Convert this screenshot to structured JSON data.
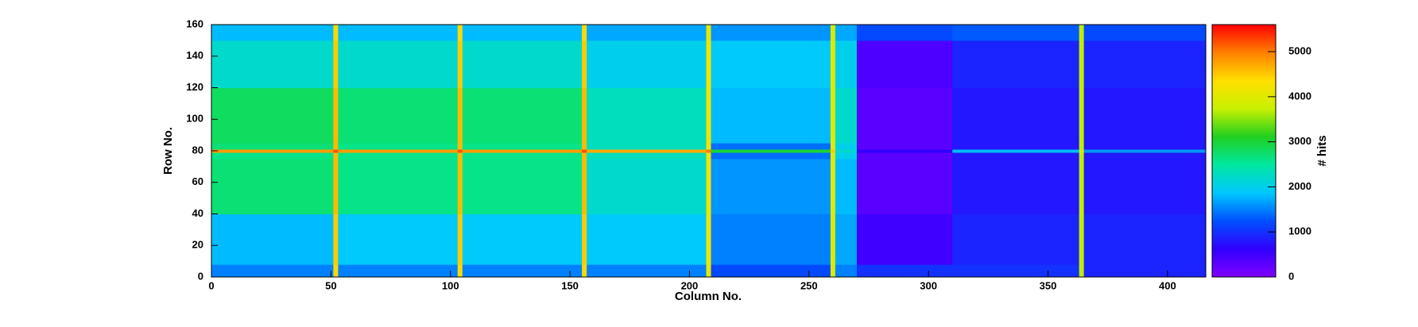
{
  "chart_data": {
    "type": "heatmap",
    "x_label": "Column No.",
    "y_label": "Row No.",
    "z_label": "# hits",
    "xbins": [
      0,
      51,
      53,
      103,
      105,
      155,
      157,
      207,
      209,
      259,
      261,
      270,
      310,
      363,
      365,
      416
    ],
    "ybins": [
      0,
      8,
      40,
      75,
      79,
      81,
      85,
      120,
      150,
      160
    ],
    "z": [
      [
        1500,
        4400,
        1500,
        4400,
        1500,
        4400,
        1500,
        4100,
        1200,
        3900,
        1500,
        1000,
        1000,
        3700,
        900
      ],
      [
        1800,
        4500,
        1900,
        4500,
        1900,
        4500,
        1900,
        4200,
        1500,
        4000,
        1700,
        500,
        900,
        3700,
        900
      ],
      [
        2700,
        4600,
        2600,
        4600,
        2600,
        4600,
        2200,
        4200,
        1600,
        4000,
        1800,
        300,
        800,
        3700,
        800
      ],
      [
        2600,
        4600,
        2600,
        4600,
        2600,
        4600,
        2300,
        4200,
        1400,
        4000,
        2000,
        300,
        800,
        3700,
        800
      ],
      [
        4800,
        5200,
        4800,
        5200,
        4800,
        5200,
        4700,
        5000,
        3000,
        4500,
        2200,
        600,
        1800,
        3900,
        1600
      ],
      [
        2700,
        4600,
        2600,
        4600,
        2600,
        4600,
        2300,
        4200,
        1400,
        4000,
        2000,
        300,
        800,
        3700,
        800
      ],
      [
        2800,
        4600,
        2700,
        4600,
        2700,
        4600,
        2300,
        4200,
        1800,
        4000,
        2200,
        300,
        800,
        3700,
        800
      ],
      [
        2200,
        4500,
        2200,
        4500,
        2200,
        4500,
        2000,
        4200,
        1900,
        4000,
        2000,
        400,
        900,
        3700,
        900
      ],
      [
        1800,
        4400,
        1800,
        4400,
        1800,
        4400,
        1700,
        4100,
        1600,
        3900,
        1700,
        1200,
        1300,
        3700,
        1200
      ]
    ],
    "xlim": [
      0,
      416
    ],
    "xticks": [
      0,
      50,
      100,
      150,
      200,
      250,
      300,
      350,
      400
    ],
    "ylim": [
      0,
      160
    ],
    "yticks": [
      0,
      20,
      40,
      60,
      80,
      100,
      120,
      140,
      160
    ],
    "zlim": [
      0,
      5600
    ],
    "zticks": [
      0,
      1000,
      2000,
      3000,
      4000,
      5000
    ],
    "colormap": [
      "#8000ff",
      "#3000ff",
      "#0050ff",
      "#00c8ff",
      "#00e8a0",
      "#20d020",
      "#c8f000",
      "#ffe000",
      "#ff8000",
      "#ff0000"
    ]
  }
}
